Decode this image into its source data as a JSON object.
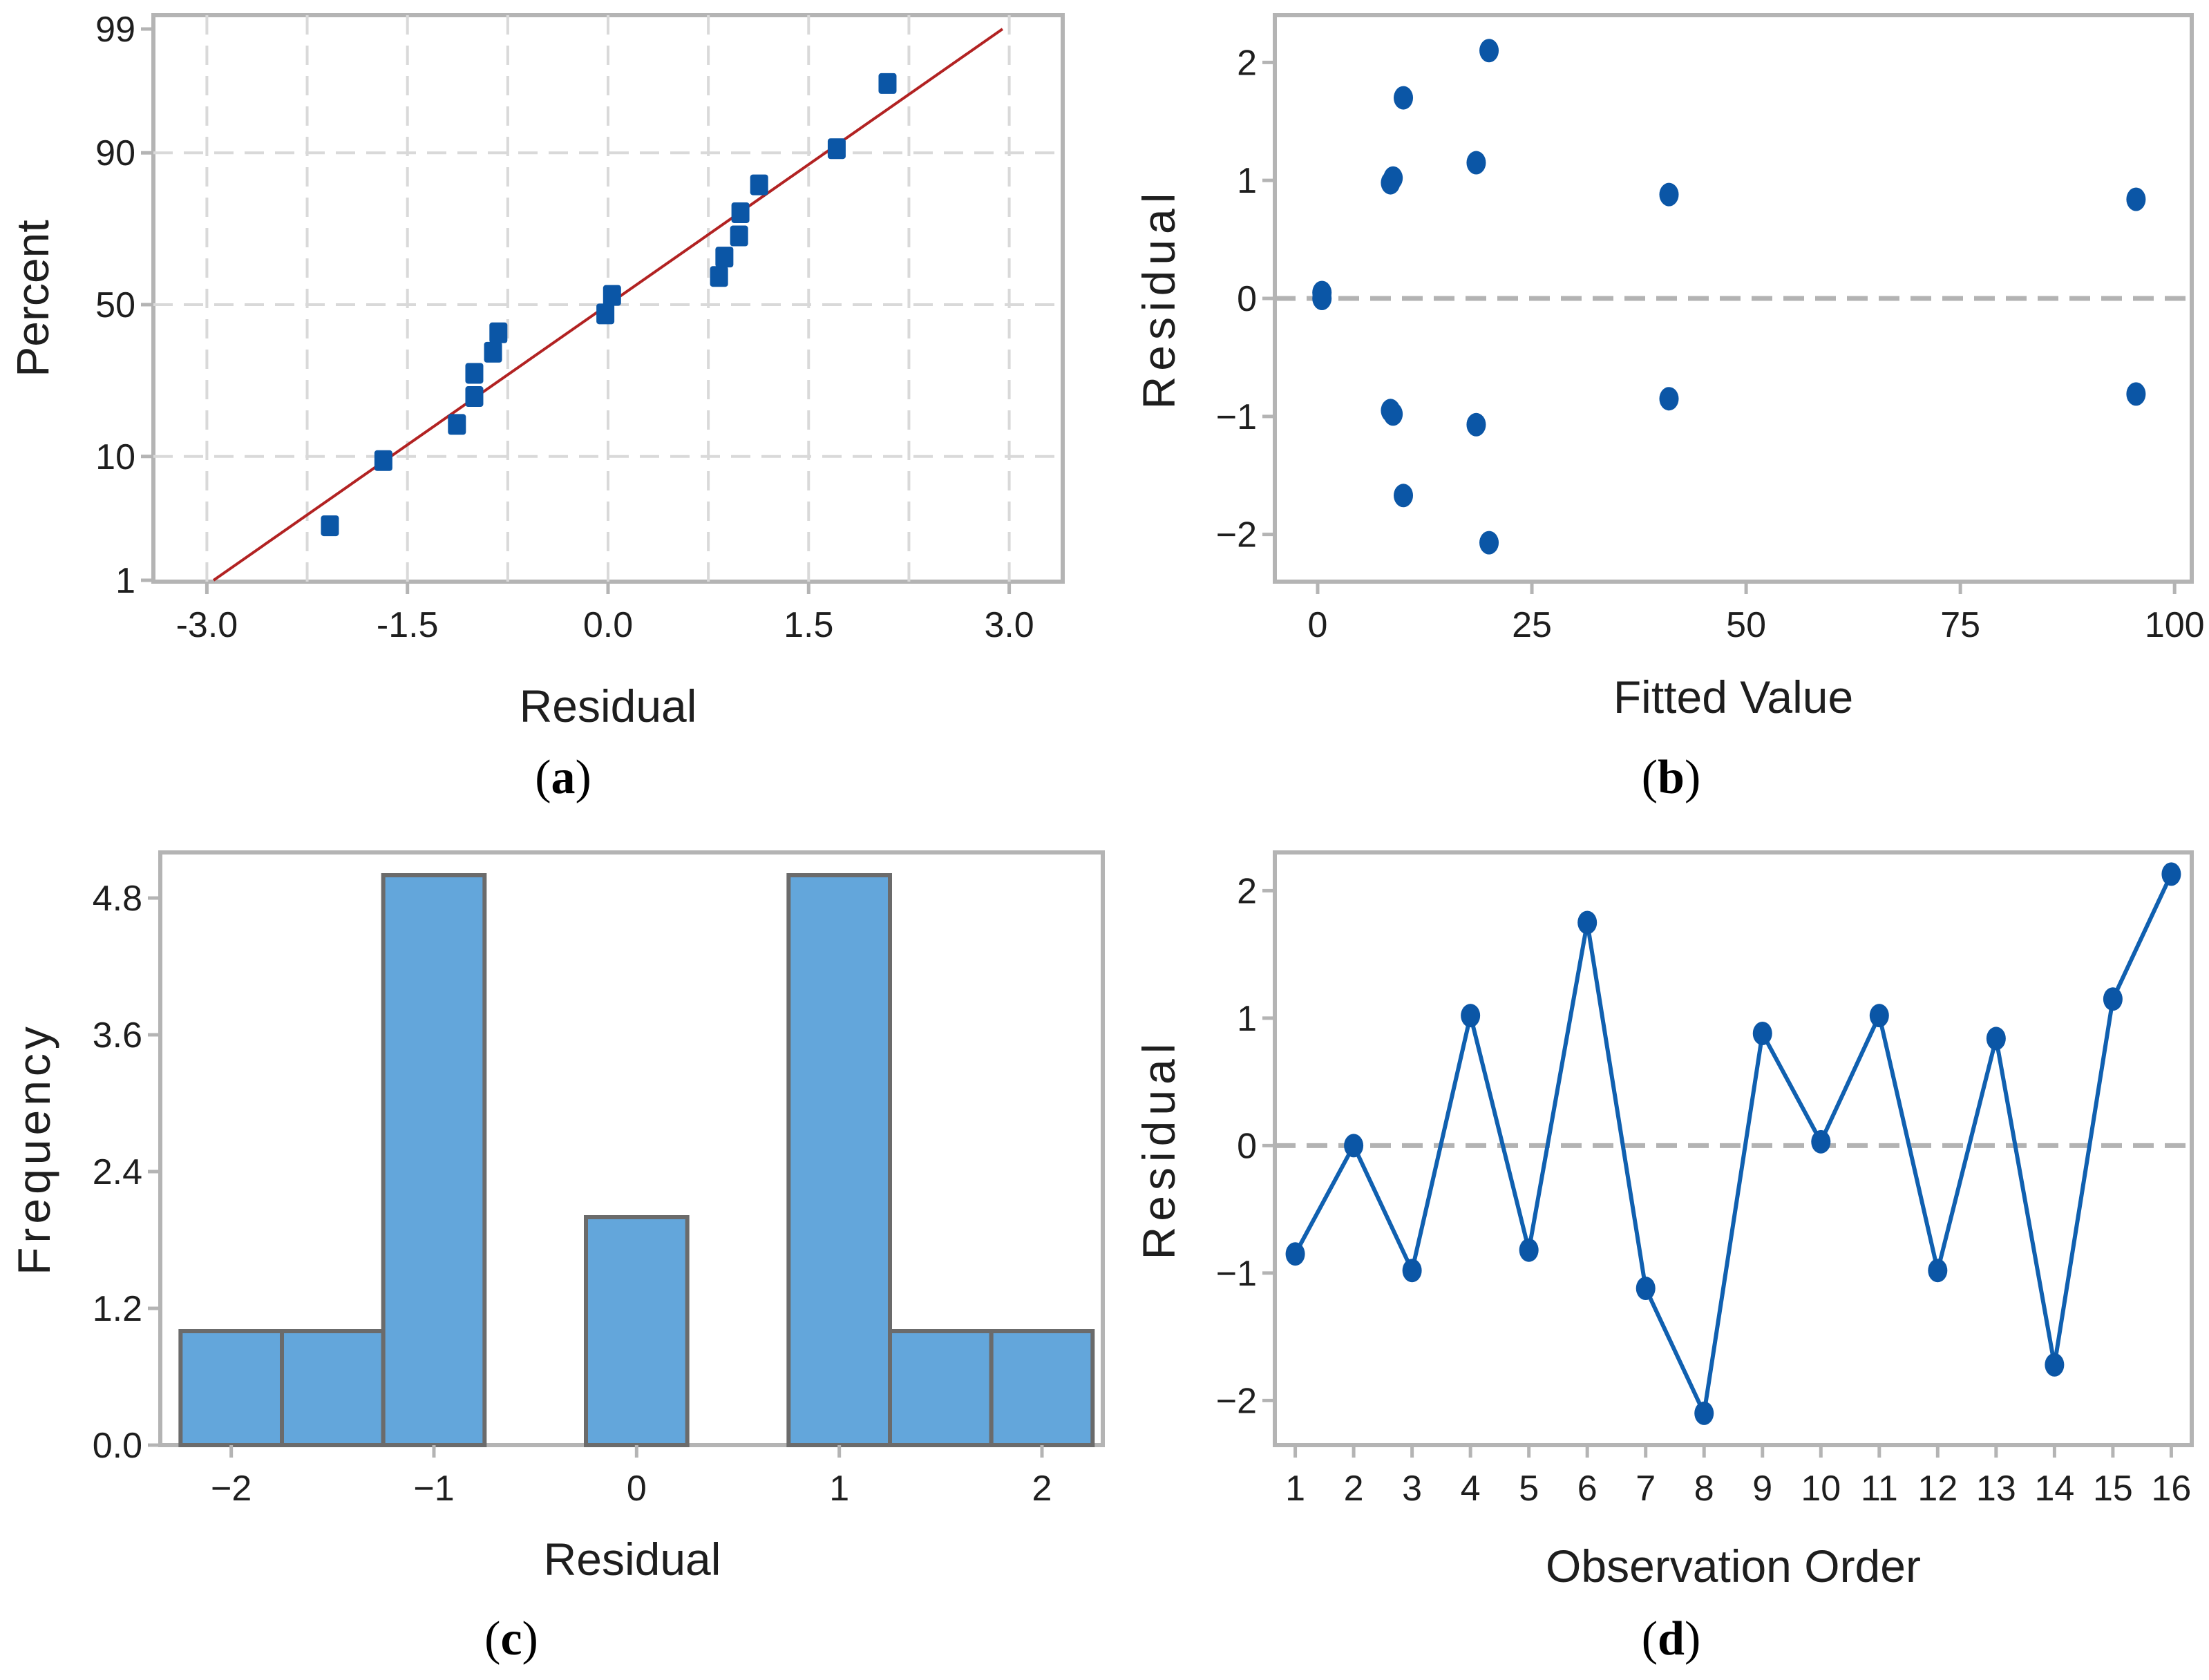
{
  "colors": {
    "marker": "#0b56a6",
    "bar_fill": "#63a6db",
    "bar_edge": "#6b6b6b",
    "fit_line": "#b22222",
    "grid": "#d9d9d9",
    "frame": "#b4b4b4"
  },
  "chart_data": [
    {
      "id": "a",
      "type": "scatter",
      "subtype": "normal-probability-plot",
      "panel_label": "a",
      "xlabel": "Residual",
      "ylabel": "Percent",
      "xlim": [
        -3.4,
        3.4
      ],
      "x_ticks": [
        -3.0,
        -1.5,
        0.0,
        1.5,
        3.0
      ],
      "x_tick_labels": [
        "-3.0",
        "-1.5",
        "0.0",
        "1.5",
        "3.0"
      ],
      "y_ticks": [
        1,
        10,
        50,
        90,
        99
      ],
      "y_tick_labels": [
        "1",
        "10",
        "50",
        "90",
        "99"
      ],
      "grid": true,
      "fit_line": {
        "x": [
          -2.95,
          2.95
        ],
        "percent": [
          1,
          99
        ]
      },
      "points": [
        {
          "x": -2.08,
          "percent": 3.1
        },
        {
          "x": -1.68,
          "percent": 9.4
        },
        {
          "x": -1.13,
          "percent": 15.6
        },
        {
          "x": -1.0,
          "percent": 21.9
        },
        {
          "x": -1.0,
          "percent": 28.1
        },
        {
          "x": -0.86,
          "percent": 34.4
        },
        {
          "x": -0.82,
          "percent": 40.6
        },
        {
          "x": -0.02,
          "percent": 46.9
        },
        {
          "x": 0.03,
          "percent": 53.1
        },
        {
          "x": 0.83,
          "percent": 59.4
        },
        {
          "x": 0.87,
          "percent": 65.6
        },
        {
          "x": 0.98,
          "percent": 71.9
        },
        {
          "x": 0.99,
          "percent": 78.1
        },
        {
          "x": 1.13,
          "percent": 84.4
        },
        {
          "x": 1.71,
          "percent": 90.6
        },
        {
          "x": 2.09,
          "percent": 96.9
        }
      ]
    },
    {
      "id": "b",
      "type": "scatter",
      "subtype": "residuals-vs-fits",
      "panel_label": "b",
      "xlabel": "Fitted Value",
      "ylabel": "Residual",
      "xlim": [
        -5,
        102
      ],
      "ylim": [
        -2.4,
        2.4
      ],
      "x_ticks": [
        0,
        25,
        50,
        75,
        100
      ],
      "x_tick_labels": [
        "0",
        "25",
        "50",
        "75",
        "100"
      ],
      "y_ticks": [
        -2,
        -1,
        0,
        1,
        2
      ],
      "y_tick_labels": [
        "−2",
        "−1",
        "0",
        "1",
        "2"
      ],
      "reference_line": 0,
      "x": [
        0.5,
        0.5,
        8.5,
        8.8,
        10.0,
        18.5,
        20.0,
        41.0,
        95.5,
        8.5,
        8.8,
        10.0,
        18.5,
        20.0,
        41.0,
        95.5
      ],
      "y": [
        0.05,
        0.0,
        0.98,
        1.02,
        1.7,
        1.15,
        2.1,
        0.88,
        0.84,
        -0.95,
        -0.98,
        -1.67,
        -1.07,
        -2.07,
        -0.85,
        -0.81
      ]
    },
    {
      "id": "c",
      "type": "bar",
      "subtype": "histogram",
      "panel_label": "c",
      "xlabel": "Residual",
      "ylabel": "Frequency",
      "bin_width": 0.5,
      "bin_centers": [
        -2.0,
        -1.5,
        -1.0,
        -0.5,
        0.0,
        0.5,
        1.0,
        1.5,
        2.0
      ],
      "values": [
        1,
        1,
        5,
        0,
        2,
        0,
        5,
        1,
        1
      ],
      "xlim": [
        -2.35,
        2.3
      ],
      "ylim": [
        0,
        5.2
      ],
      "x_ticks": [
        -2,
        -1,
        0,
        1,
        2
      ],
      "x_tick_labels": [
        "−2",
        "−1",
        "0",
        "1",
        "2"
      ],
      "y_ticks": [
        0.0,
        1.2,
        2.4,
        3.6,
        4.8
      ],
      "y_tick_labels": [
        "0.0",
        "1.2",
        "2.4",
        "3.6",
        "4.8"
      ]
    },
    {
      "id": "d",
      "type": "line",
      "subtype": "residuals-vs-order",
      "panel_label": "d",
      "xlabel": "Observation Order",
      "ylabel": "Residual",
      "xlim": [
        0.65,
        16.35
      ],
      "ylim": [
        -2.35,
        2.3
      ],
      "x": [
        1,
        2,
        3,
        4,
        5,
        6,
        7,
        8,
        9,
        10,
        11,
        12,
        13,
        14,
        15,
        16
      ],
      "y": [
        -0.85,
        0.0,
        -0.98,
        1.02,
        -0.82,
        1.75,
        -1.12,
        -2.1,
        0.88,
        0.03,
        1.02,
        -0.98,
        0.84,
        -1.72,
        1.15,
        2.13
      ],
      "x_tick_labels": [
        "1",
        "2",
        "3",
        "4",
        "5",
        "6",
        "7",
        "8",
        "9",
        "10",
        "11",
        "12",
        "13",
        "14",
        "15",
        "16"
      ],
      "y_ticks": [
        -2,
        -1,
        0,
        1,
        2
      ],
      "y_tick_labels": [
        "−2",
        "−1",
        "0",
        "1",
        "2"
      ],
      "reference_line": 0
    }
  ]
}
